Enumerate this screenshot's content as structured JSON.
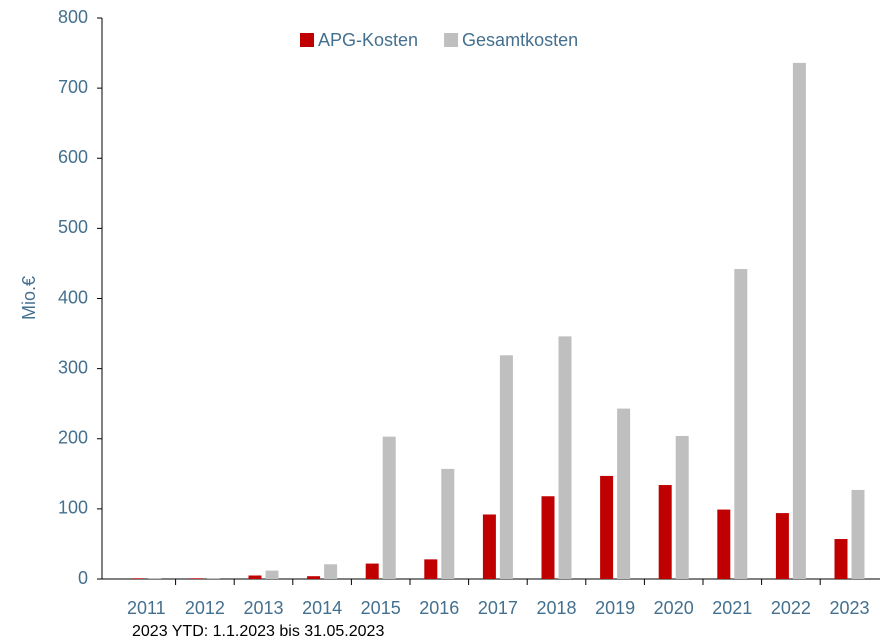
{
  "chart_data": {
    "type": "bar",
    "y_label": "Mio.€",
    "note": "2023 YTD: 1.1.2023 bis 31.05.2023",
    "categories": [
      "2011",
      "2012",
      "2013",
      "2014",
      "2015",
      "2016",
      "2017",
      "2018",
      "2019",
      "2020",
      "2021",
      "2022",
      "2023"
    ],
    "series": [
      {
        "name": "APG-Kosten",
        "color": "#c00000",
        "values": [
          1,
          1,
          5,
          4,
          22,
          28,
          92,
          118,
          147,
          134,
          99,
          94,
          57
        ]
      },
      {
        "name": "Gesamtkosten",
        "color": "#bfbfbf",
        "values": [
          0.5,
          0.5,
          12,
          21,
          203,
          157,
          319,
          346,
          243,
          204,
          442,
          736,
          127
        ]
      }
    ],
    "ylim": [
      0,
      800
    ],
    "yticks": [
      0,
      100,
      200,
      300,
      400,
      500,
      600,
      700,
      800
    ],
    "grid": false,
    "legend": "top"
  }
}
